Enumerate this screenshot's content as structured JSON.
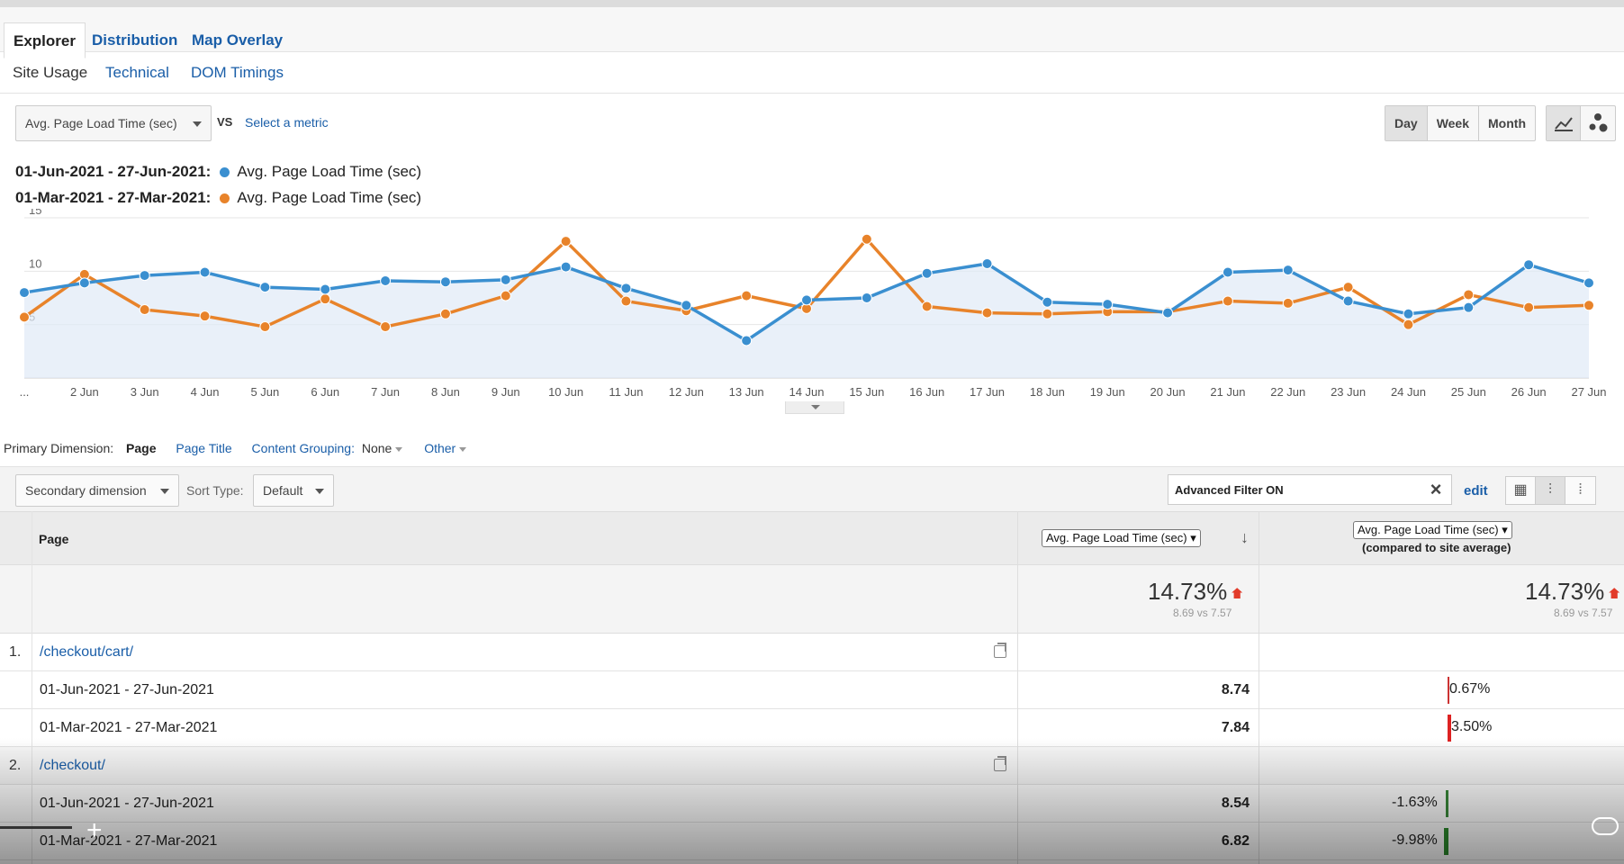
{
  "tabs": [
    "Explorer",
    "Distribution",
    "Map Overlay"
  ],
  "subtabs": [
    "Site Usage",
    "Technical",
    "DOM Timings"
  ],
  "metric": {
    "selected": "Avg. Page Load Time (sec)",
    "vs": "VS",
    "select_metric": "Select a metric"
  },
  "period_buttons": [
    "Day",
    "Week",
    "Month"
  ],
  "legend": [
    {
      "range": "01-Jun-2021 - 27-Jun-2021:",
      "label": "Avg. Page Load Time (sec)",
      "color": "#3a8fd0"
    },
    {
      "range": "01-Mar-2021 - 27-Mar-2021:",
      "label": "Avg. Page Load Time (sec)",
      "color": "#e8832a"
    }
  ],
  "chart_data": {
    "type": "line",
    "x": [
      "...",
      "2 Jun",
      "3 Jun",
      "4 Jun",
      "5 Jun",
      "6 Jun",
      "7 Jun",
      "8 Jun",
      "9 Jun",
      "10 Jun",
      "11 Jun",
      "12 Jun",
      "13 Jun",
      "14 Jun",
      "15 Jun",
      "16 Jun",
      "17 Jun",
      "18 Jun",
      "19 Jun",
      "20 Jun",
      "21 Jun",
      "22 Jun",
      "23 Jun",
      "24 Jun",
      "25 Jun",
      "26 Jun",
      "27 Jun"
    ],
    "series": [
      {
        "name": "01-Jun-2021 - 27-Jun-2021",
        "color": "#3a8fd0",
        "values": [
          8.0,
          8.9,
          9.6,
          9.9,
          8.5,
          8.3,
          9.1,
          9.0,
          9.2,
          10.4,
          8.4,
          6.8,
          3.5,
          7.3,
          7.5,
          9.8,
          10.7,
          7.1,
          6.9,
          6.1,
          9.9,
          10.1,
          7.2,
          6.0,
          6.6,
          10.6,
          8.9
        ],
        "fill": true
      },
      {
        "name": "01-Mar-2021 - 27-Mar-2021",
        "color": "#e8832a",
        "values": [
          5.7,
          9.7,
          6.4,
          5.8,
          4.8,
          7.4,
          4.8,
          6.0,
          7.7,
          12.8,
          7.2,
          6.3,
          7.7,
          6.5,
          13.0,
          6.7,
          6.1,
          6.0,
          6.2,
          6.2,
          7.2,
          7.0,
          8.5,
          5.0,
          7.8,
          6.6,
          6.8
        ]
      }
    ],
    "yticks": [
      5,
      10,
      15
    ],
    "ylim": [
      0,
      15
    ]
  },
  "table": {
    "primary_dimension_label": "Primary Dimension:",
    "dims": [
      "Page",
      "Page Title"
    ],
    "content_grouping_label": "Content Grouping:",
    "content_grouping_value": "None",
    "other": "Other",
    "secondary_dimension": "Secondary dimension",
    "sort_type_label": "Sort Type:",
    "sort_type_value": "Default",
    "filter_text": "Advanced Filter ON",
    "edit": "edit",
    "col_page": "Page",
    "col_metric": "Avg. Page Load Time (sec)",
    "col_compare_metric": "Avg. Page Load Time (sec)",
    "col_compare_sub": "(compared to site average)",
    "totals": {
      "pct": "14.73%",
      "sub": "8.69 vs 7.57",
      "pct2": "14.73%",
      "sub2": "8.69 vs 7.57"
    },
    "groups": [
      {
        "num": "1.",
        "page": "/checkout/cart/",
        "rows": [
          {
            "range": "01-Jun-2021 - 27-Jun-2021",
            "value": "8.74",
            "compare": "0.67%",
            "pct": 0.67
          },
          {
            "range": "01-Mar-2021 - 27-Mar-2021",
            "value": "7.84",
            "compare": "3.50%",
            "pct": 3.5
          }
        ]
      },
      {
        "num": "2.",
        "page": "/checkout/",
        "rows": [
          {
            "range": "01-Jun-2021 - 27-Jun-2021",
            "value": "8.54",
            "compare": "-1.63%",
            "pct": -1.63
          },
          {
            "range": "01-Mar-2021 - 27-Mar-2021",
            "value": "6.82",
            "compare": "-9.98%",
            "pct": -9.98
          }
        ]
      }
    ]
  }
}
